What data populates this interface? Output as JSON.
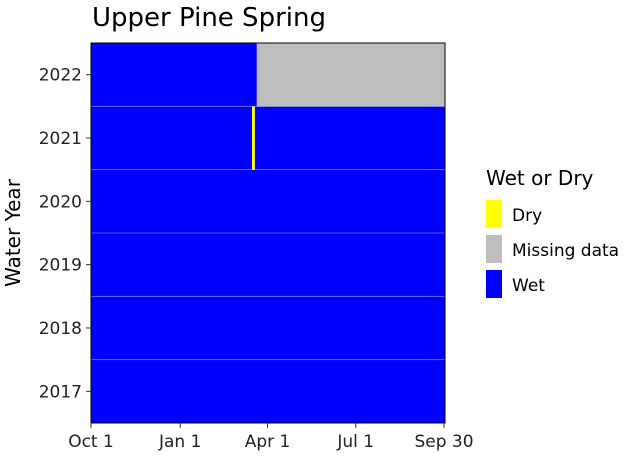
{
  "chart_data": {
    "type": "heatmap",
    "title": "Upper Pine Spring",
    "xlabel": "",
    "ylabel": "Water Year",
    "x_ticks": [
      "Oct 1",
      "Jan 1",
      "Apr 1",
      "Jul 1",
      "Sep 30"
    ],
    "x_tick_days": [
      0,
      92,
      182,
      273,
      364
    ],
    "x_range_days": [
      0,
      365
    ],
    "years": [
      "2017",
      "2018",
      "2019",
      "2020",
      "2021",
      "2022"
    ],
    "categories": [
      "Dry",
      "Missing data",
      "Wet"
    ],
    "colors": {
      "Dry": "#FFFF00",
      "Missing data": "#BEBEBE",
      "Wet": "#0000FF",
      "Grid": "#F0F0F0"
    },
    "legend": {
      "title": "Wet or Dry",
      "items": [
        "Dry",
        "Missing data",
        "Wet"
      ],
      "placement": "right"
    },
    "grid": true,
    "runs": {
      "2017": [
        {
          "start": 0,
          "end": 365,
          "status": "Wet"
        }
      ],
      "2018": [
        {
          "start": 0,
          "end": 365,
          "status": "Wet"
        }
      ],
      "2019": [
        {
          "start": 0,
          "end": 365,
          "status": "Wet"
        }
      ],
      "2020": [
        {
          "start": 0,
          "end": 365,
          "status": "Wet"
        }
      ],
      "2021": [
        {
          "start": 0,
          "end": 166,
          "status": "Wet"
        },
        {
          "start": 166,
          "end": 169,
          "status": "Dry"
        },
        {
          "start": 169,
          "end": 365,
          "status": "Wet"
        }
      ],
      "2022": [
        {
          "start": 0,
          "end": 171,
          "status": "Wet"
        },
        {
          "start": 171,
          "end": 365,
          "status": "Missing data"
        }
      ]
    }
  }
}
